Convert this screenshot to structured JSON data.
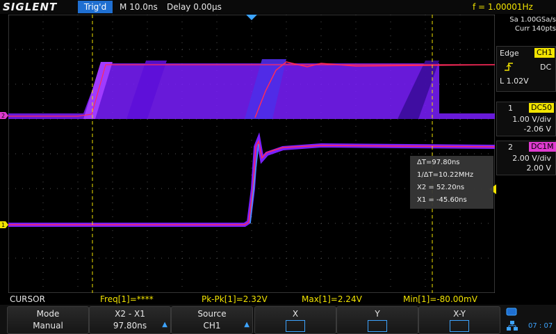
{
  "topbar": {
    "logo": "SIGLENT",
    "trigger_status": "Trig'd",
    "timebase": "M 10.0ns",
    "delay": "Delay 0.00µs",
    "frequency": "f = 1.00001Hz"
  },
  "acquisition": {
    "sample_rate": "Sa 1.00GSa/s",
    "memory": "Curr 140pts"
  },
  "trigger_panel": {
    "type": "Edge",
    "source": "CH1",
    "coupling": "DC",
    "level": "L  1.02V",
    "slope_icon": "rising-edge-icon"
  },
  "channels": [
    {
      "number": "1",
      "coupling": "DC50",
      "scale": "1.00 V/div",
      "offset": "-2.06 V",
      "color": "#f2e400"
    },
    {
      "number": "2",
      "coupling": "DC1M",
      "scale": "2.00 V/div",
      "offset": "2.00 V",
      "color": "#e03bd0"
    }
  ],
  "cursor_readout": {
    "delta_t": "ΔT=97.80ns",
    "inv_delta_t": "1/ΔT=10.22MHz",
    "x2": "X2 = 52.20ns",
    "x1": "X1 = -45.60ns"
  },
  "measurements": {
    "mode_label": "CURSOR",
    "freq": "Freq[1]=****",
    "pkpk": "Pk-Pk[1]=2.32V",
    "max": "Max[1]=2.24V",
    "min": "Min[1]=-80.00mV"
  },
  "softkeys": [
    {
      "line1": "Mode",
      "line2": "Manual"
    },
    {
      "line1": "X2 - X1",
      "line2": "97.80ns"
    },
    {
      "line1": "Source",
      "line2": "CH1"
    },
    {
      "line1": "X",
      "line2": ""
    },
    {
      "line1": "Y",
      "line2": ""
    },
    {
      "line1": "X-Y",
      "line2": ""
    }
  ],
  "status": {
    "clock": "07 : 07"
  },
  "colors": {
    "accent_blue": "#1f6fd1",
    "cursor_yellow": "#f2e400",
    "trace_purple": "#8a2bff",
    "trace_red": "#ff2a5a"
  }
}
